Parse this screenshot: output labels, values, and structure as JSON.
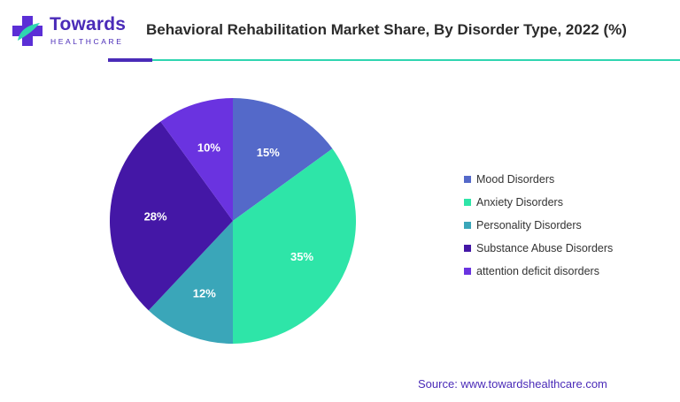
{
  "brand": {
    "name": "Towards",
    "tagline": "HEALTHCARE",
    "accent_color": "#4a2bb8"
  },
  "header": {
    "title": "Behavioral Rehabilitation Market Share, By Disorder Type, 2022 (%)"
  },
  "chart_data": {
    "type": "pie",
    "title": "Behavioral Rehabilitation Market Share, By Disorder Type, 2022 (%)",
    "categories": [
      "Mood Disorders",
      "Anxiety Disorders",
      "Personality Disorders",
      "Substance Abuse Disorders",
      "attention deficit disorders"
    ],
    "values": [
      15,
      35,
      12,
      28,
      10
    ],
    "labels": [
      "15%",
      "35%",
      "12%",
      "28%",
      "10%"
    ],
    "colors": [
      "#5469c9",
      "#2ee5a8",
      "#3aa6b9",
      "#4417a6",
      "#6a33e0"
    ],
    "legend_position": "right"
  },
  "footer": {
    "source": "Source: www.towardshealthcare.com"
  }
}
